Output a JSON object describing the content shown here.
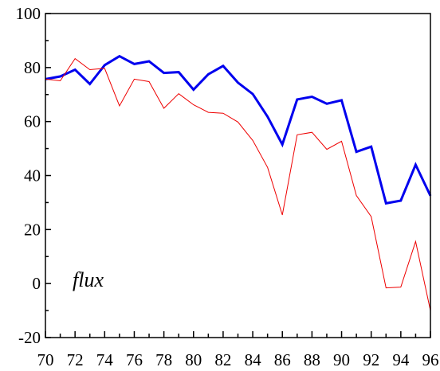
{
  "chart_data": {
    "type": "line",
    "title": "",
    "xlabel": "",
    "ylabel": "",
    "annotation": "flux",
    "x": [
      70,
      71,
      72,
      73,
      74,
      75,
      76,
      77,
      78,
      79,
      80,
      81,
      82,
      83,
      84,
      85,
      86,
      87,
      88,
      89,
      90,
      91,
      92,
      93,
      94,
      95,
      96
    ],
    "xlim": [
      70,
      96
    ],
    "ylim": [
      -20,
      100
    ],
    "x_ticks": [
      70,
      72,
      74,
      76,
      78,
      80,
      82,
      84,
      86,
      88,
      90,
      92,
      94,
      96
    ],
    "x_tick_labels": [
      "70",
      "72",
      "74",
      "76",
      "78",
      "80",
      "82",
      "84",
      "86",
      "88",
      "90",
      "92",
      "94",
      "96"
    ],
    "y_ticks": [
      -20,
      0,
      20,
      40,
      60,
      80,
      100
    ],
    "y_tick_labels": [
      "-20",
      "0",
      "20",
      "40",
      "60",
      "80",
      "100"
    ],
    "grid": false,
    "series": [
      {
        "color": "#0000ee",
        "style": "thick",
        "values": [
          75.7,
          76.7,
          79.2,
          73.9,
          80.9,
          84.2,
          81.3,
          82.3,
          78.0,
          78.3,
          71.8,
          77.5,
          80.6,
          74.4,
          70.2,
          61.8,
          51.5,
          68.2,
          69.2,
          66.6,
          67.9,
          48.8,
          50.7,
          29.7,
          30.7,
          44.0,
          32.5
        ]
      },
      {
        "color": "#ee0000",
        "style": "thin",
        "values": [
          75.7,
          75.1,
          83.3,
          79.2,
          79.7,
          65.8,
          75.7,
          74.8,
          64.9,
          70.3,
          66.2,
          63.4,
          63.1,
          59.8,
          53.0,
          43.0,
          25.4,
          55.1,
          56.0,
          49.7,
          52.7,
          32.6,
          24.8,
          -1.6,
          -1.3,
          15.6,
          -10.0
        ]
      }
    ]
  }
}
